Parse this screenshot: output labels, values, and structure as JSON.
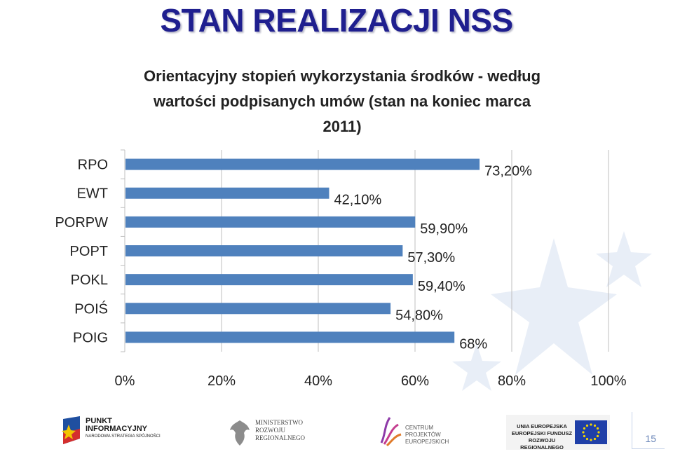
{
  "slide": {
    "title": "STAN REALIZACJI NSS",
    "page_number": "15"
  },
  "colors": {
    "title": "#1f1f8f",
    "bar": "#4f81bd",
    "grid": "#bfbfbf",
    "text": "#222222"
  },
  "chart_data": {
    "type": "bar",
    "orientation": "horizontal",
    "title": "Orientacyjny stopień wykorzystania środków - według wartości podpisanych umów (stan na koniec marca 2011)",
    "title_lines": [
      "Orientacyjny stopień wykorzystania środków - według",
      "wartości podpisanych umów (stan na koniec marca",
      "2011)"
    ],
    "categories": [
      "RPO",
      "EWT",
      "PORPW",
      "POPT",
      "POKL",
      "POIŚ",
      "POIG"
    ],
    "values": [
      73.2,
      42.1,
      59.9,
      57.3,
      59.4,
      54.8,
      68
    ],
    "data_labels": [
      "73,20%",
      "42,10%",
      "59,90%",
      "57,30%",
      "59,40%",
      "54,80%",
      "68%"
    ],
    "x_ticks": [
      "0%",
      "20%",
      "40%",
      "60%",
      "80%",
      "100%"
    ],
    "xlim": [
      0,
      100
    ],
    "grid": true,
    "legend": "none"
  },
  "footer": {
    "logo1_lines": [
      "PUNKT",
      "INFORMACYJNY",
      "NARODOWA STRATEGIA SPÓJNOŚCI"
    ],
    "logo2_lines": [
      "MINISTERSTWO",
      "ROZWOJU",
      "REGIONALNEGO"
    ],
    "logo3_lines": [
      "CENTRUM PROJEKTÓW",
      "EUROPEJSKICH"
    ],
    "logo4_lines": [
      "UNIA EUROPEJSKA",
      "EUROPEJSKI FUNDUSZ",
      "ROZWOJU REGIONALNEGO"
    ]
  }
}
